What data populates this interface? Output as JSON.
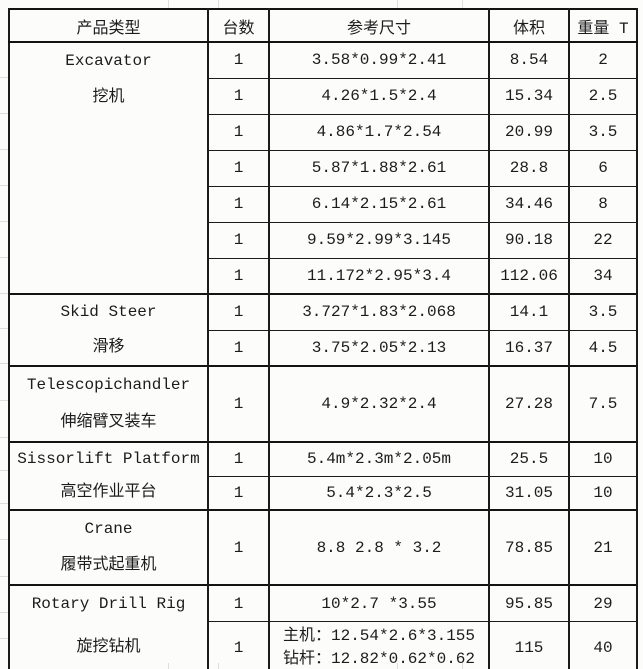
{
  "table": {
    "headers": [
      "产品类型",
      "台数",
      "参考尺寸",
      "体积",
      "重量 T"
    ],
    "groups": [
      {
        "name_en": "Excavator",
        "name_zh": "挖机",
        "rows": [
          {
            "qty": "1",
            "size": "3.58*0.99*2.41",
            "volume": "8.54",
            "weight": "2"
          },
          {
            "qty": "1",
            "size": "4.26*1.5*2.4",
            "volume": "15.34",
            "weight": "2.5"
          },
          {
            "qty": "1",
            "size": "4.86*1.7*2.54",
            "volume": "20.99",
            "weight": "3.5"
          },
          {
            "qty": "1",
            "size": "5.87*1.88*2.61",
            "volume": "28.8",
            "weight": "6"
          },
          {
            "qty": "1",
            "size": "6.14*2.15*2.61",
            "volume": "34.46",
            "weight": "8"
          },
          {
            "qty": "1",
            "size": "9.59*2.99*3.145",
            "volume": "90.18",
            "weight": "22"
          },
          {
            "qty": "1",
            "size": "11.172*2.95*3.4",
            "volume": "112.06",
            "weight": "34"
          }
        ]
      },
      {
        "name_en": "Skid Steer",
        "name_zh": "滑移",
        "rows": [
          {
            "qty": "1",
            "size": "3.727*1.83*2.068",
            "volume": "14.1",
            "weight": "3.5"
          },
          {
            "qty": "1",
            "size": "3.75*2.05*2.13",
            "volume": "16.37",
            "weight": "4.5"
          }
        ]
      },
      {
        "name_en": "Telescopichandler",
        "name_zh": "伸缩臂叉装车",
        "rows": [
          {
            "qty": "1",
            "size": "4.9*2.32*2.4",
            "volume": "27.28",
            "weight": "7.5"
          }
        ]
      },
      {
        "name_en": "Sissorlift Platform",
        "name_zh": "高空作业平台",
        "rows": [
          {
            "qty": "1",
            "size": "5.4m*2.3m*2.05m",
            "volume": "25.5",
            "weight": "10"
          },
          {
            "qty": "1",
            "size": "5.4*2.3*2.5",
            "volume": "31.05",
            "weight": "10"
          }
        ]
      },
      {
        "name_en": "Crane",
        "name_zh": "履带式起重机",
        "rows": [
          {
            "qty": "1",
            "size": "8.8 2.8 * 3.2",
            "volume": "78.85",
            "weight": "21"
          }
        ]
      },
      {
        "name_en": "Rotary Drill Rig",
        "name_zh": "旋挖钻机",
        "rows": [
          {
            "qty": "1",
            "size": "10*2.7 *3.55",
            "volume": "95.85",
            "weight": "29"
          },
          {
            "qty": "1",
            "size": [
              "主机：12.54*2.6*3.155",
              "钻杆：12.82*0.62*0.62"
            ],
            "volume": "115",
            "weight": "40"
          }
        ]
      }
    ]
  },
  "colors": {
    "border": "#131313",
    "text": "#1c1c1c",
    "background": "#fcfcfb",
    "gridline": "#e0ddda"
  }
}
